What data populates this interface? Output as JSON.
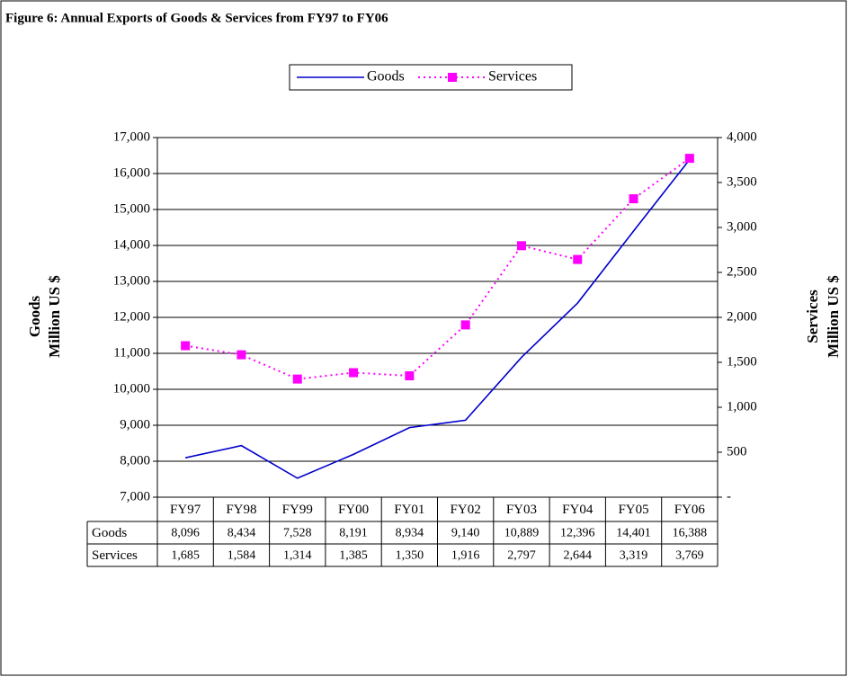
{
  "chart_data": {
    "type": "line",
    "title": "Figure 6: Annual  Exports  of Goods & Services from FY97 to FY06",
    "ylabel": [
      "Goods",
      "Million US $"
    ],
    "y2label": [
      "Services",
      "Million US $"
    ],
    "categories": [
      "FY97",
      "FY98",
      "FY99",
      "FY00",
      "FY01",
      "FY02",
      "FY03",
      "FY04",
      "FY05",
      "FY06"
    ],
    "series": [
      {
        "name": "Goods",
        "color": "#0000cc",
        "axis": "y",
        "values": [
          8096,
          8434,
          7528,
          8191,
          8934,
          9140,
          10889,
          12396,
          14401,
          16388
        ],
        "value_labels": [
          "8,096",
          "8,434",
          "7,528",
          "8,191",
          "8,934",
          "9,140",
          "10,889",
          "12,396",
          "14,401",
          "16,388"
        ]
      },
      {
        "name": "Services",
        "color": "#ff00ff",
        "axis": "y2",
        "values": [
          1685,
          1584,
          1314,
          1385,
          1350,
          1916,
          2797,
          2644,
          3319,
          3769
        ],
        "value_labels": [
          "1,685",
          "1,584",
          "1,314",
          "1,385",
          "1,350",
          "1,916",
          "2,797",
          "2,644",
          "3,319",
          "3,769"
        ]
      }
    ],
    "ylim": [
      7000,
      17000
    ],
    "yticks": [
      {
        "value": 7000,
        "label": "7,000"
      },
      {
        "value": 8000,
        "label": "8,000"
      },
      {
        "value": 9000,
        "label": "9,000"
      },
      {
        "value": 10000,
        "label": "10,000"
      },
      {
        "value": 11000,
        "label": "11,000"
      },
      {
        "value": 12000,
        "label": "12,000"
      },
      {
        "value": 13000,
        "label": "13,000"
      },
      {
        "value": 14000,
        "label": "14,000"
      },
      {
        "value": 15000,
        "label": "15,000"
      },
      {
        "value": 16000,
        "label": "16,000"
      },
      {
        "value": 17000,
        "label": "17,000"
      }
    ],
    "y2lim": [
      0,
      4000
    ],
    "y2ticks": [
      {
        "value": 0,
        "label": "-"
      },
      500,
      {
        "value": 1000,
        "label": "1,000"
      },
      {
        "value": 1500,
        "label": "1,500"
      },
      {
        "value": 2000,
        "label": "2,000"
      },
      {
        "value": 2500,
        "label": "2,500"
      },
      {
        "value": 3000,
        "label": "3,000"
      },
      {
        "value": 3500,
        "label": "3,500"
      },
      {
        "value": 4000,
        "label": "4,000"
      }
    ],
    "grid": true
  }
}
